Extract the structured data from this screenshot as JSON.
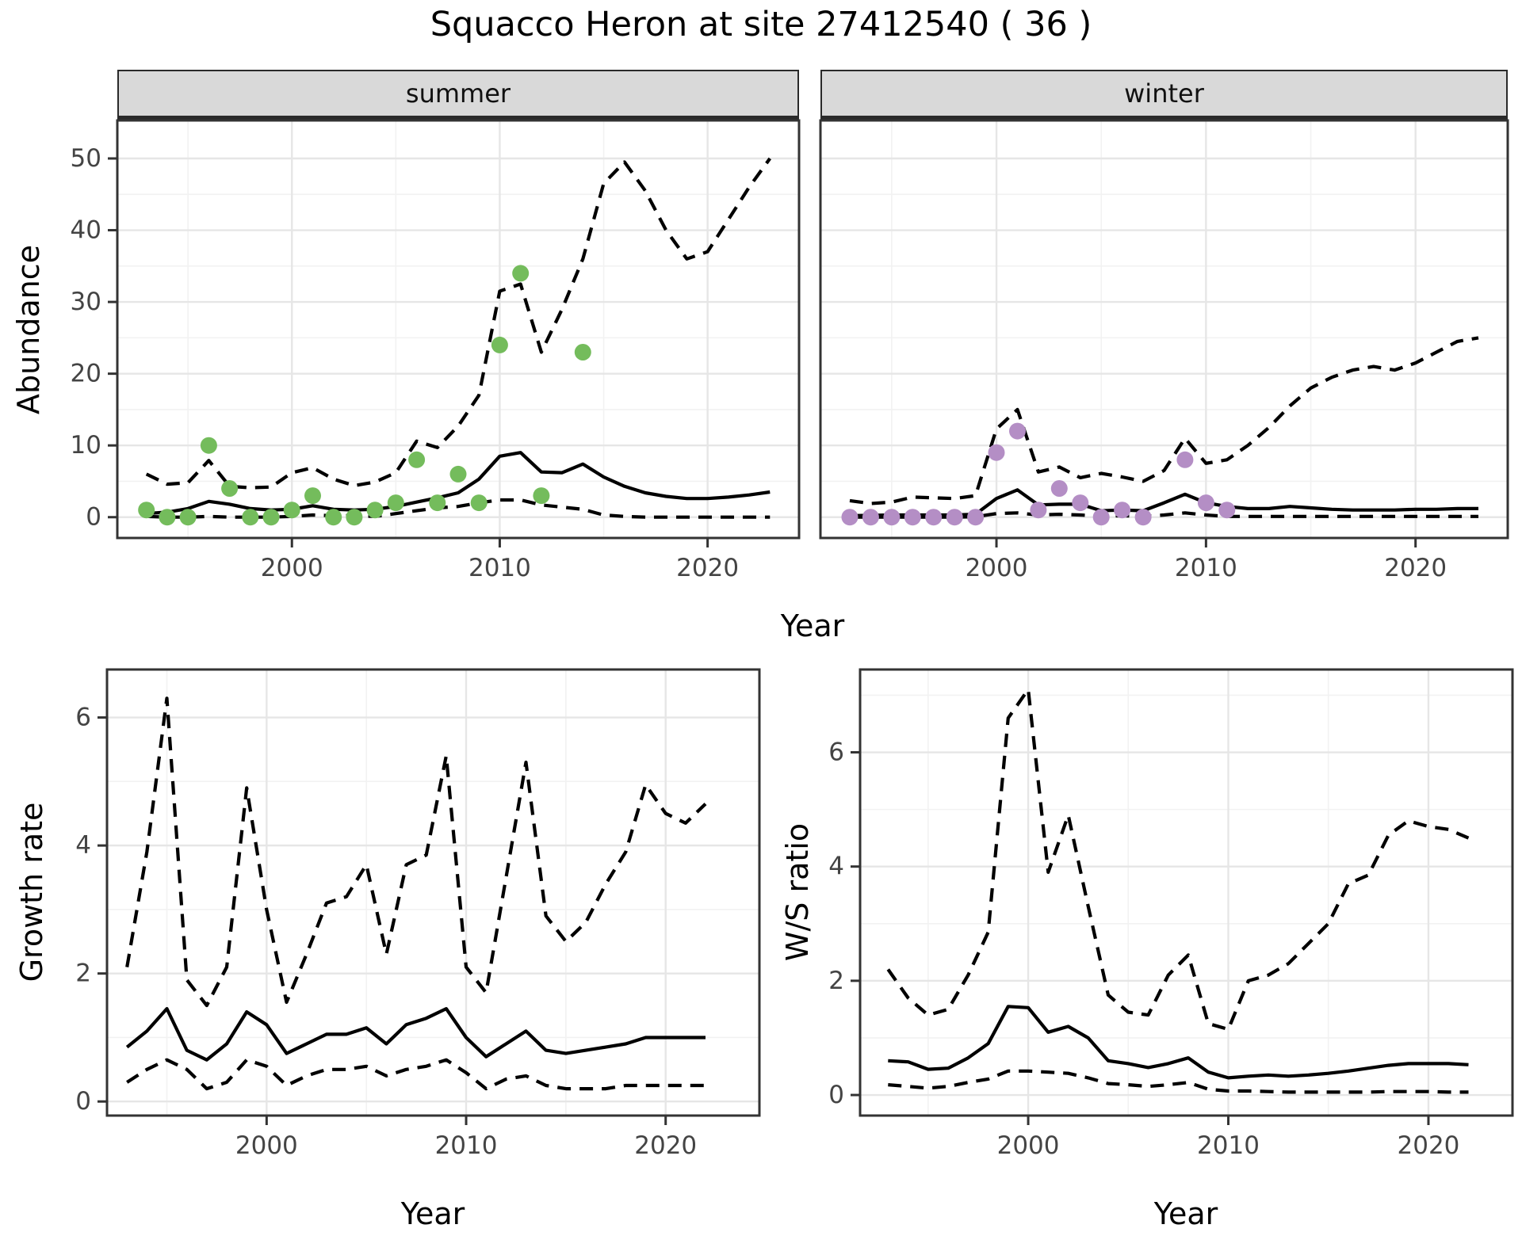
{
  "title": "Squacco Heron at site 27412540 ( 36 )",
  "colors": {
    "summer_point": "#74BC5C",
    "winter_point": "#B48EC5",
    "line": "#000000",
    "grid_major": "#E6E6E6",
    "grid_minor": "#F2F2F2",
    "strip_fill": "#D9D9D9",
    "panel_border": "#333333",
    "tick_text": "#444444"
  },
  "chart_data": [
    {
      "id": "abundance-summer",
      "type": "line",
      "facet": "summer",
      "xlabel": "Year",
      "ylabel": "Abundance",
      "x_range": [
        1991.6,
        2024.4
      ],
      "y_range": [
        -2.9,
        55.3
      ],
      "x_ticks": [
        2000,
        2010,
        2020
      ],
      "x_minor": [
        1995,
        2005,
        2015
      ],
      "y_ticks": [
        0,
        10,
        20,
        30,
        40,
        50
      ],
      "y_minor": [
        5,
        15,
        25,
        35,
        45
      ],
      "show_y_tick_labels": true,
      "grid": true,
      "legend": "none",
      "years": [
        1993,
        1994,
        1995,
        1996,
        1997,
        1998,
        1999,
        2000,
        2001,
        2002,
        2003,
        2004,
        2005,
        2006,
        2007,
        2008,
        2009,
        2010,
        2011,
        2012,
        2013,
        2014,
        2015,
        2016,
        2017,
        2018,
        2019,
        2020,
        2021,
        2022,
        2023
      ],
      "series": [
        {
          "name": "upper_ci",
          "linetype": "dashed",
          "values": [
            6.0,
            4.6,
            4.8,
            7.9,
            4.3,
            4.1,
            4.2,
            6.2,
            6.9,
            5.3,
            4.4,
            4.9,
            6.2,
            10.6,
            9.7,
            12.7,
            17.0,
            31.5,
            32.5,
            23.0,
            29.0,
            36.0,
            46.5,
            49.5,
            45.5,
            40.0,
            36.0,
            37.0,
            41.5,
            46.0,
            50.0
          ]
        },
        {
          "name": "median",
          "linetype": "solid",
          "values": [
            0.5,
            0.7,
            1.2,
            2.2,
            1.8,
            1.2,
            1.0,
            1.1,
            1.6,
            1.1,
            1.0,
            1.1,
            1.5,
            2.1,
            2.7,
            3.4,
            5.3,
            8.5,
            9.0,
            6.3,
            6.2,
            7.4,
            5.6,
            4.3,
            3.4,
            2.9,
            2.6,
            2.6,
            2.8,
            3.1,
            3.5
          ]
        },
        {
          "name": "lower_ci",
          "linetype": "dashed",
          "values": [
            0.1,
            0.0,
            0.0,
            0.1,
            0.0,
            0.0,
            0.0,
            0.1,
            0.3,
            0.2,
            0.2,
            0.1,
            0.5,
            0.9,
            1.3,
            1.5,
            2.0,
            2.4,
            2.4,
            1.7,
            1.4,
            1.1,
            0.3,
            0.1,
            0.0,
            0.0,
            0.0,
            0.0,
            0.0,
            0.0,
            0.0
          ]
        }
      ],
      "points": {
        "name": "observed_counts",
        "color_key": "summer_point",
        "data": [
          [
            1993,
            1
          ],
          [
            1994,
            0
          ],
          [
            1995,
            0
          ],
          [
            1996,
            10
          ],
          [
            1997,
            4
          ],
          [
            1998,
            0
          ],
          [
            1999,
            0
          ],
          [
            2000,
            1
          ],
          [
            2001,
            3
          ],
          [
            2002,
            0
          ],
          [
            2003,
            0
          ],
          [
            2004,
            1
          ],
          [
            2005,
            2
          ],
          [
            2006,
            8
          ],
          [
            2007,
            2
          ],
          [
            2008,
            6
          ],
          [
            2009,
            2
          ],
          [
            2010,
            24
          ],
          [
            2011,
            34
          ],
          [
            2012,
            3
          ],
          [
            2014,
            23
          ]
        ]
      }
    },
    {
      "id": "abundance-winter",
      "type": "line",
      "facet": "winter",
      "xlabel": "Year",
      "ylabel": "Abundance",
      "x_range": [
        1991.6,
        2024.4
      ],
      "y_range": [
        -2.9,
        55.3
      ],
      "x_ticks": [
        2000,
        2010,
        2020
      ],
      "x_minor": [
        1995,
        2005,
        2015
      ],
      "y_ticks": [
        0,
        10,
        20,
        30,
        40,
        50
      ],
      "y_minor": [
        5,
        15,
        25,
        35,
        45
      ],
      "show_y_tick_labels": false,
      "grid": true,
      "legend": "none",
      "years": [
        1993,
        1994,
        1995,
        1996,
        1997,
        1998,
        1999,
        2000,
        2001,
        2002,
        2003,
        2004,
        2005,
        2006,
        2007,
        2008,
        2009,
        2010,
        2011,
        2012,
        2013,
        2014,
        2015,
        2016,
        2017,
        2018,
        2019,
        2020,
        2021,
        2022,
        2023
      ],
      "series": [
        {
          "name": "upper_ci",
          "linetype": "dashed",
          "values": [
            2.3,
            1.9,
            2.1,
            2.8,
            2.7,
            2.6,
            3.0,
            12.3,
            15.0,
            6.3,
            7.0,
            5.5,
            6.1,
            5.6,
            5.0,
            6.5,
            11.0,
            7.5,
            8.0,
            10.0,
            12.5,
            15.5,
            18.0,
            19.5,
            20.5,
            21.0,
            20.5,
            21.5,
            23.0,
            24.5,
            25.0
          ]
        },
        {
          "name": "median",
          "linetype": "solid",
          "values": [
            0.2,
            0.25,
            0.3,
            0.3,
            0.3,
            0.3,
            0.4,
            2.6,
            3.8,
            1.7,
            1.8,
            1.8,
            0.9,
            1.0,
            0.9,
            2.0,
            3.2,
            2.0,
            1.5,
            1.2,
            1.2,
            1.5,
            1.3,
            1.1,
            1.0,
            1.0,
            1.0,
            1.1,
            1.1,
            1.2,
            1.2
          ]
        },
        {
          "name": "lower_ci",
          "linetype": "dashed",
          "values": [
            0.0,
            0.0,
            0.0,
            0.0,
            0.0,
            0.0,
            0.05,
            0.5,
            0.6,
            0.3,
            0.4,
            0.3,
            0.15,
            0.2,
            0.1,
            0.3,
            0.6,
            0.3,
            0.1,
            0.1,
            0.1,
            0.1,
            0.1,
            0.1,
            0.1,
            0.1,
            0.1,
            0.1,
            0.1,
            0.1,
            0.1
          ]
        }
      ],
      "points": {
        "name": "observed_counts",
        "color_key": "winter_point",
        "data": [
          [
            1993,
            0
          ],
          [
            1994,
            0
          ],
          [
            1995,
            0
          ],
          [
            1996,
            0
          ],
          [
            1997,
            0
          ],
          [
            1998,
            0
          ],
          [
            1999,
            0
          ],
          [
            2000,
            9
          ],
          [
            2001,
            12
          ],
          [
            2002,
            1
          ],
          [
            2003,
            4
          ],
          [
            2004,
            2
          ],
          [
            2005,
            0
          ],
          [
            2006,
            1
          ],
          [
            2007,
            0
          ],
          [
            2009,
            8
          ],
          [
            2010,
            2
          ],
          [
            2011,
            1
          ]
        ]
      }
    },
    {
      "id": "growth-rate",
      "type": "line",
      "facet": null,
      "xlabel": "Year",
      "ylabel": "Growth rate",
      "x_range": [
        1992.0,
        2024.7
      ],
      "y_range": [
        -0.22,
        6.75
      ],
      "x_ticks": [
        2000,
        2010,
        2020
      ],
      "x_minor": [
        1995,
        2005,
        2015
      ],
      "y_ticks": [
        0,
        2,
        4,
        6
      ],
      "y_minor": [
        1,
        3,
        5
      ],
      "show_y_tick_labels": true,
      "grid": true,
      "legend": "none",
      "years": [
        1993,
        1994,
        1995,
        1996,
        1997,
        1998,
        1999,
        2000,
        2001,
        2002,
        2003,
        2004,
        2005,
        2006,
        2007,
        2008,
        2009,
        2010,
        2011,
        2012,
        2013,
        2014,
        2015,
        2016,
        2017,
        2018,
        2019,
        2020,
        2021,
        2022
      ],
      "series": [
        {
          "name": "upper_ci",
          "linetype": "dashed",
          "values": [
            2.1,
            3.9,
            6.3,
            1.9,
            1.5,
            2.1,
            4.9,
            3.0,
            1.55,
            2.3,
            3.1,
            3.2,
            3.7,
            2.3,
            3.7,
            3.85,
            5.4,
            2.1,
            1.7,
            3.5,
            5.3,
            2.9,
            2.5,
            2.8,
            3.4,
            3.9,
            4.95,
            4.5,
            4.35,
            4.65
          ]
        },
        {
          "name": "median",
          "linetype": "solid",
          "values": [
            0.85,
            1.1,
            1.45,
            0.8,
            0.65,
            0.9,
            1.4,
            1.2,
            0.75,
            0.9,
            1.05,
            1.05,
            1.15,
            0.9,
            1.2,
            1.3,
            1.45,
            1.0,
            0.7,
            0.9,
            1.1,
            0.8,
            0.75,
            0.8,
            0.85,
            0.9,
            1.0,
            1.0,
            1.0,
            1.0
          ]
        },
        {
          "name": "lower_ci",
          "linetype": "dashed",
          "values": [
            0.3,
            0.5,
            0.65,
            0.5,
            0.2,
            0.3,
            0.65,
            0.55,
            0.25,
            0.4,
            0.5,
            0.5,
            0.55,
            0.4,
            0.5,
            0.55,
            0.65,
            0.45,
            0.2,
            0.35,
            0.4,
            0.25,
            0.2,
            0.2,
            0.2,
            0.25,
            0.25,
            0.25,
            0.25,
            0.25
          ]
        }
      ],
      "points": null
    },
    {
      "id": "ws-ratio",
      "type": "line",
      "facet": null,
      "xlabel": "Year",
      "ylabel": "W/S ratio",
      "x_range": [
        1991.6,
        2024.2
      ],
      "y_range": [
        -0.36,
        7.45
      ],
      "x_ticks": [
        2000,
        2010,
        2020
      ],
      "x_minor": [
        1995,
        2005,
        2015
      ],
      "y_ticks": [
        0,
        2,
        4,
        6
      ],
      "y_minor": [
        1,
        3,
        5,
        7
      ],
      "show_y_tick_labels": true,
      "grid": true,
      "legend": "none",
      "years": [
        1993,
        1994,
        1995,
        1996,
        1997,
        1998,
        1999,
        2000,
        2001,
        2002,
        2003,
        2004,
        2005,
        2006,
        2007,
        2008,
        2009,
        2010,
        2011,
        2012,
        2013,
        2014,
        2015,
        2016,
        2017,
        2018,
        2019,
        2020,
        2021,
        2022
      ],
      "series": [
        {
          "name": "upper_ci",
          "linetype": "dashed",
          "values": [
            2.2,
            1.7,
            1.4,
            1.5,
            2.1,
            2.85,
            6.6,
            7.1,
            3.9,
            4.9,
            3.3,
            1.75,
            1.45,
            1.4,
            2.1,
            2.45,
            1.25,
            1.15,
            2.0,
            2.1,
            2.3,
            2.65,
            3.0,
            3.7,
            3.85,
            4.55,
            4.8,
            4.7,
            4.65,
            4.5
          ]
        },
        {
          "name": "median",
          "linetype": "solid",
          "values": [
            0.6,
            0.58,
            0.45,
            0.47,
            0.65,
            0.9,
            1.55,
            1.53,
            1.1,
            1.2,
            1.0,
            0.6,
            0.55,
            0.48,
            0.55,
            0.65,
            0.4,
            0.3,
            0.33,
            0.35,
            0.33,
            0.35,
            0.38,
            0.42,
            0.47,
            0.52,
            0.55,
            0.55,
            0.55,
            0.53
          ]
        },
        {
          "name": "lower_ci",
          "linetype": "dashed",
          "values": [
            0.18,
            0.15,
            0.12,
            0.15,
            0.22,
            0.28,
            0.42,
            0.42,
            0.4,
            0.38,
            0.3,
            0.2,
            0.18,
            0.15,
            0.18,
            0.22,
            0.1,
            0.07,
            0.07,
            0.06,
            0.05,
            0.05,
            0.05,
            0.05,
            0.05,
            0.06,
            0.06,
            0.06,
            0.05,
            0.05
          ]
        }
      ],
      "points": null
    }
  ]
}
